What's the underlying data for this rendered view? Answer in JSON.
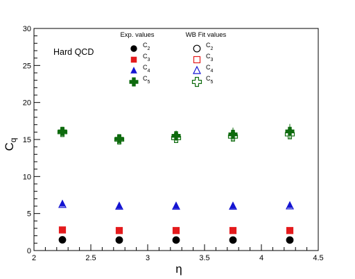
{
  "chart_data": {
    "type": "scatter",
    "title": "",
    "xlabel": "η",
    "ylabel_main": "C",
    "ylabel_sub": "q",
    "xlim": [
      2,
      4.5
    ],
    "ylim": [
      0,
      30
    ],
    "x_ticks": [
      "2",
      "2.5",
      "3",
      "3.5",
      "4",
      "4.5"
    ],
    "y_ticks": [
      "0",
      "5",
      "10",
      "15",
      "20",
      "25",
      "30"
    ],
    "grid": false,
    "annotation": "Hard QCD",
    "legend_titles": {
      "exp": "Exp. values",
      "fit": "WB Fit values"
    },
    "legend_placement": "top",
    "x": [
      2.25,
      2.75,
      3.25,
      3.75,
      4.25
    ],
    "series": [
      {
        "name_main": "C",
        "name_sub": "2",
        "group": "exp",
        "marker": "circle-filled",
        "color": "#000000",
        "values": [
          1.45,
          1.42,
          1.42,
          1.42,
          1.42
        ],
        "errors": [
          0.08,
          0.08,
          0.08,
          0.08,
          0.08
        ]
      },
      {
        "name_main": "C",
        "name_sub": "3",
        "group": "exp",
        "marker": "square-filled",
        "color": "#e41a1c",
        "values": [
          2.8,
          2.72,
          2.72,
          2.72,
          2.72
        ],
        "errors": [
          0.15,
          0.15,
          0.15,
          0.15,
          0.15
        ]
      },
      {
        "name_main": "C",
        "name_sub": "4",
        "group": "exp",
        "marker": "triangle-filled",
        "color": "#1414d2",
        "values": [
          6.3,
          6.0,
          6.0,
          6.0,
          6.1
        ],
        "errors": [
          0.35,
          0.3,
          0.3,
          0.3,
          0.35
        ]
      },
      {
        "name_main": "C",
        "name_sub": "5",
        "group": "exp",
        "marker": "cross-filled",
        "color": "#0e6b0e",
        "values": [
          16.1,
          15.1,
          15.5,
          15.7,
          16.1
        ],
        "errors": [
          0.6,
          0.6,
          0.7,
          0.9,
          1.0
        ]
      },
      {
        "name_main": "C",
        "name_sub": "2",
        "group": "fit",
        "marker": "circle-open",
        "color": "#000000",
        "values": [
          1.45,
          1.42,
          1.42,
          1.42,
          1.42
        ]
      },
      {
        "name_main": "C",
        "name_sub": "3",
        "group": "fit",
        "marker": "square-open",
        "color": "#e41a1c",
        "values": [
          2.78,
          2.7,
          2.7,
          2.7,
          2.7
        ]
      },
      {
        "name_main": "C",
        "name_sub": "4",
        "group": "fit",
        "marker": "triangle-open",
        "color": "#1414d2",
        "values": [
          6.2,
          5.95,
          5.95,
          5.95,
          6.0
        ]
      },
      {
        "name_main": "C",
        "name_sub": "5",
        "group": "fit",
        "marker": "cross-open",
        "color": "#0e6b0e",
        "values": [
          16.0,
          15.0,
          15.2,
          15.4,
          15.7
        ]
      }
    ]
  }
}
